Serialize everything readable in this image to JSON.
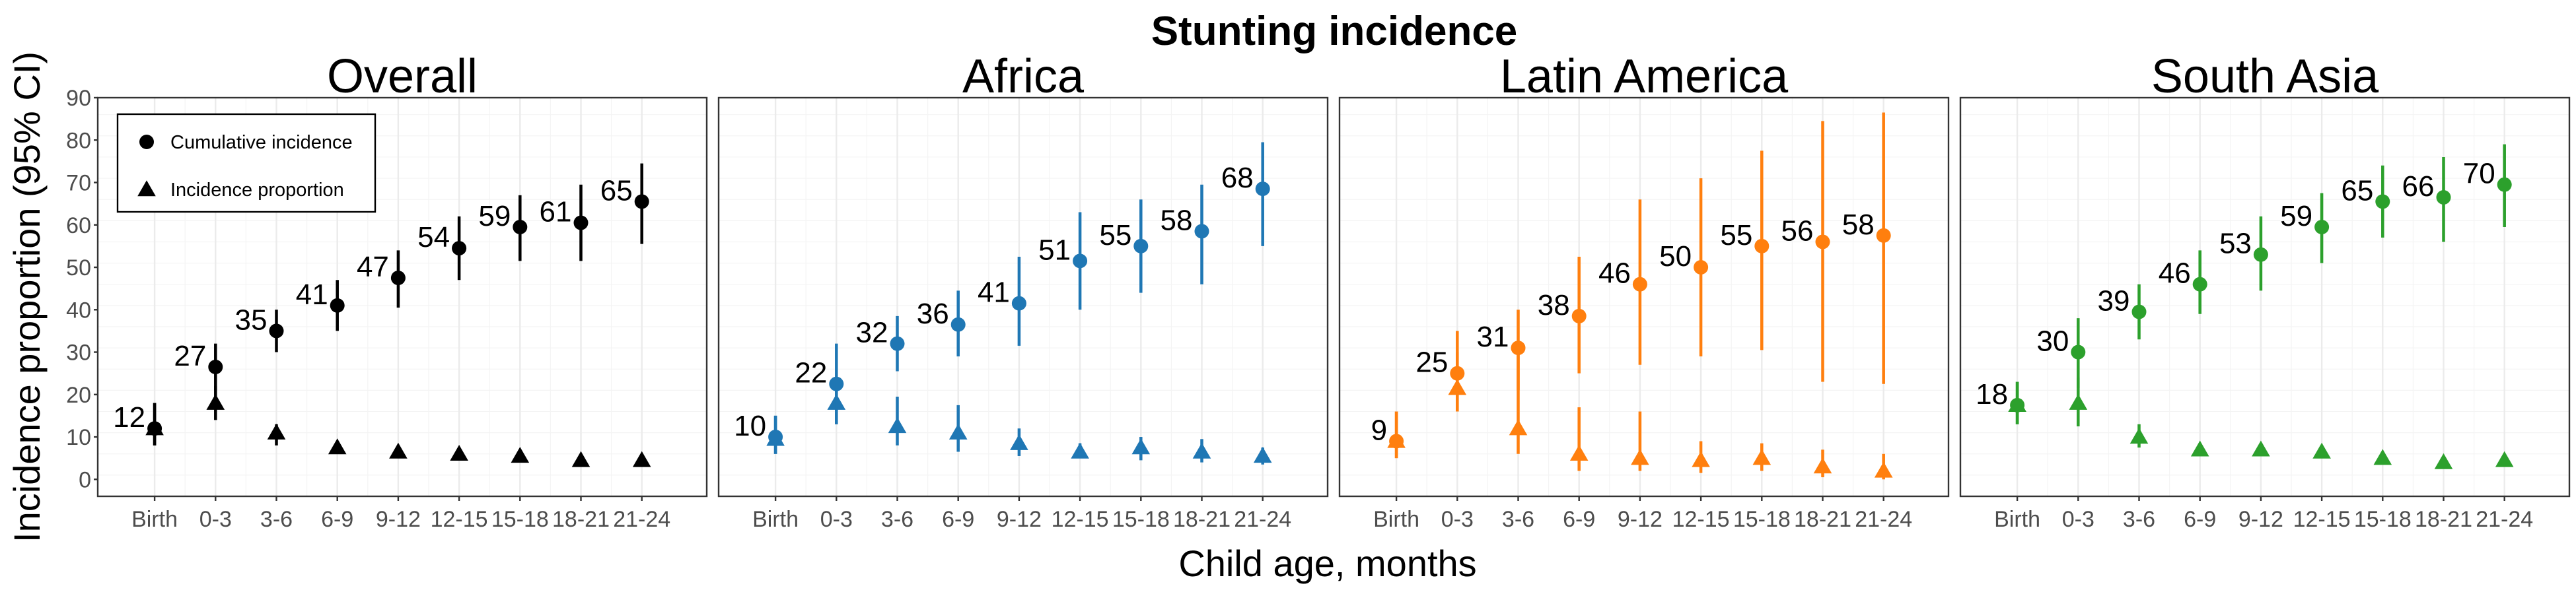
{
  "chart_data": {
    "type": "scatter",
    "title": "Stunting incidence",
    "xlabel": "Child age, months",
    "ylabel": "Incidence proportion (95% CI)",
    "ylim": [
      -4,
      90
    ],
    "yticks": [
      0,
      10,
      20,
      30,
      40,
      50,
      60,
      70,
      80,
      90
    ],
    "categories": [
      "Birth",
      "0-3",
      "3-6",
      "6-9",
      "9-12",
      "12-15",
      "15-18",
      "18-21",
      "21-24"
    ],
    "grid": true,
    "legend": {
      "placement": "top-left",
      "entries": [
        {
          "name": "Cumulative incidence",
          "marker": "circle"
        },
        {
          "name": "Incidence proportion",
          "marker": "triangle"
        }
      ]
    },
    "panels": [
      {
        "name": "Overall",
        "color": "#000000",
        "cumulative_incidence": [
          {
            "x": "Birth",
            "y": 12,
            "lo": 8,
            "hi": 18,
            "label": "12"
          },
          {
            "x": "0-3",
            "y": 26.5,
            "lo": 21,
            "hi": 32,
            "label": "27"
          },
          {
            "x": "3-6",
            "y": 35,
            "lo": 30,
            "hi": 40,
            "label": "35"
          },
          {
            "x": "6-9",
            "y": 41,
            "lo": 35,
            "hi": 47,
            "label": "41"
          },
          {
            "x": "9-12",
            "y": 47.5,
            "lo": 40.5,
            "hi": 54,
            "label": "47"
          },
          {
            "x": "12-15",
            "y": 54.5,
            "lo": 47,
            "hi": 62,
            "label": "54"
          },
          {
            "x": "15-18",
            "y": 59.5,
            "lo": 51.5,
            "hi": 67,
            "label": "59"
          },
          {
            "x": "18-21",
            "y": 60.5,
            "lo": 51.5,
            "hi": 69.5,
            "label": "61"
          },
          {
            "x": "21-24",
            "y": 65.5,
            "lo": 55.5,
            "hi": 74.5,
            "label": "65"
          }
        ],
        "incidence_proportion": [
          {
            "x": "Birth",
            "y": 12,
            "lo": 8,
            "hi": 18
          },
          {
            "x": "0-3",
            "y": 18,
            "lo": 14,
            "hi": 22
          },
          {
            "x": "3-6",
            "y": 11,
            "lo": 8,
            "hi": 13
          },
          {
            "x": "6-9",
            "y": 7.5,
            "lo": 6,
            "hi": 9
          },
          {
            "x": "9-12",
            "y": 6.5,
            "lo": 5,
            "hi": 8
          },
          {
            "x": "12-15",
            "y": 6,
            "lo": 4.5,
            "hi": 7
          },
          {
            "x": "15-18",
            "y": 5.5,
            "lo": 4,
            "hi": 7
          },
          {
            "x": "18-21",
            "y": 4.5,
            "lo": 3.5,
            "hi": 5.5
          },
          {
            "x": "21-24",
            "y": 4.5,
            "lo": 3.5,
            "hi": 5.5
          }
        ]
      },
      {
        "name": "Africa",
        "color": "#1F77B4",
        "cumulative_incidence": [
          {
            "x": "Birth",
            "y": 10,
            "lo": 6,
            "hi": 15,
            "label": "10"
          },
          {
            "x": "0-3",
            "y": 22.5,
            "lo": 13,
            "hi": 32,
            "label": "22"
          },
          {
            "x": "3-6",
            "y": 32,
            "lo": 25.5,
            "hi": 38.5,
            "label": "32"
          },
          {
            "x": "6-9",
            "y": 36.5,
            "lo": 29,
            "hi": 44.5,
            "label": "36"
          },
          {
            "x": "9-12",
            "y": 41.5,
            "lo": 31.5,
            "hi": 52.5,
            "label": "41"
          },
          {
            "x": "12-15",
            "y": 51.5,
            "lo": 40,
            "hi": 63,
            "label": "51"
          },
          {
            "x": "15-18",
            "y": 55,
            "lo": 44,
            "hi": 66,
            "label": "55"
          },
          {
            "x": "18-21",
            "y": 58.5,
            "lo": 46,
            "hi": 69.5,
            "label": "58"
          },
          {
            "x": "21-24",
            "y": 68.5,
            "lo": 55,
            "hi": 79.5,
            "label": "68"
          }
        ],
        "incidence_proportion": [
          {
            "x": "Birth",
            "y": 9.5,
            "lo": 6,
            "hi": 15
          },
          {
            "x": "0-3",
            "y": 18,
            "lo": 13,
            "hi": 22
          },
          {
            "x": "3-6",
            "y": 12.5,
            "lo": 8,
            "hi": 19.5
          },
          {
            "x": "6-9",
            "y": 11,
            "lo": 6.5,
            "hi": 17.5
          },
          {
            "x": "9-12",
            "y": 8.5,
            "lo": 5.5,
            "hi": 12
          },
          {
            "x": "12-15",
            "y": 6.5,
            "lo": 5,
            "hi": 8.5
          },
          {
            "x": "15-18",
            "y": 7.5,
            "lo": 4.5,
            "hi": 10
          },
          {
            "x": "18-21",
            "y": 6.5,
            "lo": 4,
            "hi": 9.5
          },
          {
            "x": "21-24",
            "y": 5.5,
            "lo": 3.5,
            "hi": 7.5
          }
        ]
      },
      {
        "name": "Latin America",
        "color": "#FF7F0E",
        "cumulative_incidence": [
          {
            "x": "Birth",
            "y": 9,
            "lo": 5,
            "hi": 16,
            "label": "9"
          },
          {
            "x": "0-3",
            "y": 25,
            "lo": 16,
            "hi": 35,
            "label": "25"
          },
          {
            "x": "3-6",
            "y": 31,
            "lo": 21,
            "hi": 40,
            "label": "31"
          },
          {
            "x": "6-9",
            "y": 38.5,
            "lo": 25,
            "hi": 52.5,
            "label": "38"
          },
          {
            "x": "9-12",
            "y": 46,
            "lo": 27,
            "hi": 66,
            "label": "46"
          },
          {
            "x": "12-15",
            "y": 50,
            "lo": 29,
            "hi": 71,
            "label": "50"
          },
          {
            "x": "15-18",
            "y": 55,
            "lo": 30.5,
            "hi": 77.5,
            "label": "55"
          },
          {
            "x": "18-21",
            "y": 56,
            "lo": 23,
            "hi": 84.5,
            "label": "56"
          },
          {
            "x": "21-24",
            "y": 57.5,
            "lo": 22.5,
            "hi": 86.5,
            "label": "58"
          }
        ],
        "incidence_proportion": [
          {
            "x": "Birth",
            "y": 9,
            "lo": 5,
            "hi": 16
          },
          {
            "x": "0-3",
            "y": 21.5,
            "lo": 16,
            "hi": 30
          },
          {
            "x": "3-6",
            "y": 12,
            "lo": 6,
            "hi": 30
          },
          {
            "x": "6-9",
            "y": 6,
            "lo": 2,
            "hi": 17
          },
          {
            "x": "9-12",
            "y": 5,
            "lo": 2,
            "hi": 16
          },
          {
            "x": "12-15",
            "y": 4.5,
            "lo": 1.5,
            "hi": 9
          },
          {
            "x": "15-18",
            "y": 5,
            "lo": 2,
            "hi": 8.5
          },
          {
            "x": "18-21",
            "y": 3,
            "lo": 0.5,
            "hi": 7
          },
          {
            "x": "21-24",
            "y": 2,
            "lo": 0,
            "hi": 6
          }
        ]
      },
      {
        "name": "South Asia",
        "color": "#2CA02C",
        "cumulative_incidence": [
          {
            "x": "Birth",
            "y": 17.5,
            "lo": 13,
            "hi": 23,
            "label": "18"
          },
          {
            "x": "0-3",
            "y": 30,
            "lo": 21.5,
            "hi": 38,
            "label": "30"
          },
          {
            "x": "3-6",
            "y": 39.5,
            "lo": 33,
            "hi": 46,
            "label": "39"
          },
          {
            "x": "6-9",
            "y": 46,
            "lo": 39,
            "hi": 54,
            "label": "46"
          },
          {
            "x": "9-12",
            "y": 53,
            "lo": 44.5,
            "hi": 62,
            "label": "53"
          },
          {
            "x": "12-15",
            "y": 59.5,
            "lo": 51,
            "hi": 67.5,
            "label": "59"
          },
          {
            "x": "15-18",
            "y": 65.5,
            "lo": 57,
            "hi": 74,
            "label": "65"
          },
          {
            "x": "18-21",
            "y": 66.5,
            "lo": 56,
            "hi": 76,
            "label": "66"
          },
          {
            "x": "21-24",
            "y": 69.5,
            "lo": 59.5,
            "hi": 79,
            "label": "70"
          }
        ],
        "incidence_proportion": [
          {
            "x": "Birth",
            "y": 17.5,
            "lo": 13,
            "hi": 23
          },
          {
            "x": "0-3",
            "y": 18,
            "lo": 12.5,
            "hi": 24
          },
          {
            "x": "3-6",
            "y": 10,
            "lo": 7.5,
            "hi": 13
          },
          {
            "x": "6-9",
            "y": 7,
            "lo": 6,
            "hi": 8
          },
          {
            "x": "9-12",
            "y": 7,
            "lo": 5.5,
            "hi": 8.5
          },
          {
            "x": "12-15",
            "y": 6.5,
            "lo": 5,
            "hi": 7.5
          },
          {
            "x": "15-18",
            "y": 5,
            "lo": 4,
            "hi": 6
          },
          {
            "x": "18-21",
            "y": 4,
            "lo": 3,
            "hi": 5
          },
          {
            "x": "21-24",
            "y": 4.5,
            "lo": 3.5,
            "hi": 5.5
          }
        ]
      }
    ]
  }
}
